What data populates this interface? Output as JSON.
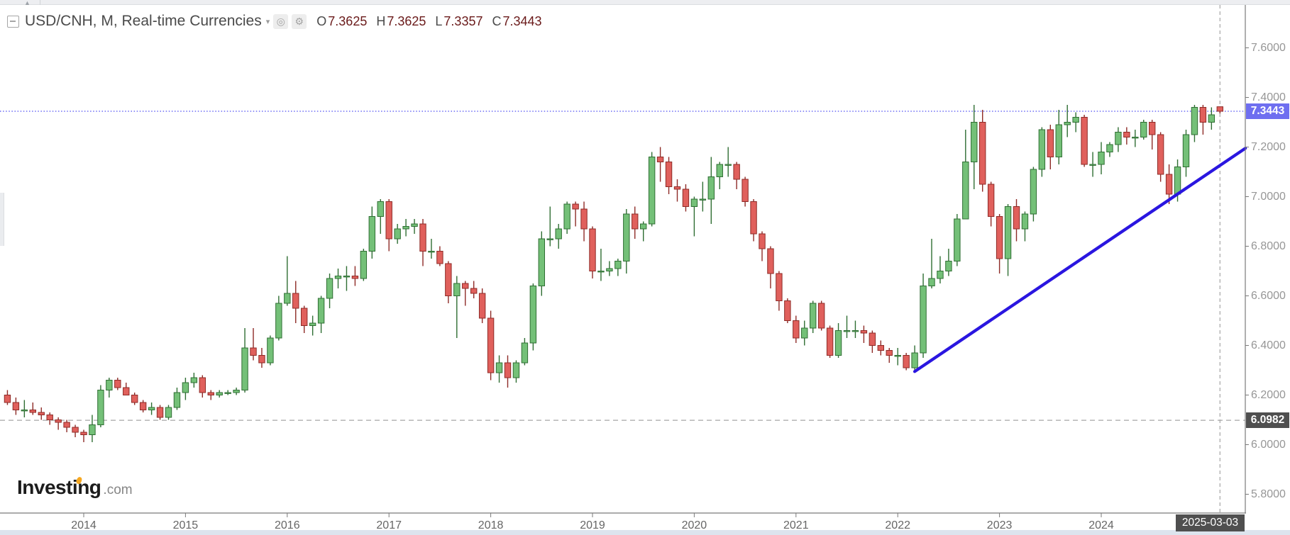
{
  "header": {
    "title": "USD/CNH, M, Real-time Currencies",
    "ohlc": [
      {
        "label": "O",
        "value": "7.3625"
      },
      {
        "label": "H",
        "value": "7.3625"
      },
      {
        "label": "L",
        "value": "7.3357"
      },
      {
        "label": "C",
        "value": "7.3443"
      }
    ],
    "icon_glyphs": {
      "caret": "▾",
      "visibility": "◎",
      "settings": "⚙",
      "scroll_up": "▲"
    },
    "value_color": "#6a1a1a",
    "title_color": "#4a4a4a"
  },
  "logo": {
    "brand": "Investing",
    "suffix": ".com",
    "accent_color": "#f6a71f"
  },
  "price_axis": {
    "ticks": [
      "7.6000",
      "7.4000",
      "7.2000",
      "7.0000",
      "6.8000",
      "6.6000",
      "6.4000",
      "6.2000",
      "6.0000",
      "5.8000"
    ],
    "current_price_label": "7.3443",
    "current_price_bg": "#6e6ef0",
    "reference_price_label": "6.0982",
    "reference_price_bg": "#4f4f4f"
  },
  "time_axis": {
    "years": [
      "2014",
      "2015",
      "2016",
      "2017",
      "2018",
      "2019",
      "2020",
      "2021",
      "2022",
      "2023",
      "2024"
    ],
    "current_date_label": "2025-03-03"
  },
  "chart_data": {
    "type": "candlestick",
    "symbol": "USD/CNH",
    "interval": "M",
    "feed": "Real-time Currencies",
    "title": "USD/CNH Monthly",
    "xlabel": "",
    "ylabel": "",
    "ylim": [
      5.72,
      7.77
    ],
    "grid": false,
    "legend_position": "none",
    "start_month": "2013-04",
    "last_bar_date": "2025-03-03",
    "last_bar_ohlc": {
      "open": 7.3625,
      "high": 7.3625,
      "low": 7.3357,
      "close": 7.3443
    },
    "candles": [
      [
        6.2,
        6.22,
        6.16,
        6.17
      ],
      [
        6.17,
        6.19,
        6.12,
        6.14
      ],
      [
        6.14,
        6.18,
        6.11,
        6.14
      ],
      [
        6.14,
        6.17,
        6.12,
        6.13
      ],
      [
        6.13,
        6.15,
        6.1,
        6.12
      ],
      [
        6.12,
        6.13,
        6.08,
        6.1
      ],
      [
        6.1,
        6.11,
        6.06,
        6.09
      ],
      [
        6.09,
        6.1,
        6.05,
        6.07
      ],
      [
        6.07,
        6.08,
        6.03,
        6.05
      ],
      [
        6.05,
        6.06,
        6.01,
        6.04
      ],
      [
        6.04,
        6.12,
        6.01,
        6.08
      ],
      [
        6.08,
        6.24,
        6.07,
        6.22
      ],
      [
        6.22,
        6.27,
        6.19,
        6.26
      ],
      [
        6.26,
        6.27,
        6.22,
        6.23
      ],
      [
        6.23,
        6.25,
        6.2,
        6.2
      ],
      [
        6.2,
        6.21,
        6.16,
        6.17
      ],
      [
        6.17,
        6.18,
        6.13,
        6.14
      ],
      [
        6.14,
        6.17,
        6.12,
        6.15
      ],
      [
        6.15,
        6.16,
        6.1,
        6.11
      ],
      [
        6.11,
        6.16,
        6.1,
        6.15
      ],
      [
        6.15,
        6.23,
        6.14,
        6.21
      ],
      [
        6.21,
        6.27,
        6.18,
        6.25
      ],
      [
        6.25,
        6.29,
        6.23,
        6.27
      ],
      [
        6.27,
        6.28,
        6.19,
        6.21
      ],
      [
        6.21,
        6.22,
        6.18,
        6.2
      ],
      [
        6.2,
        6.22,
        6.19,
        6.21
      ],
      [
        6.21,
        6.22,
        6.2,
        6.21
      ],
      [
        6.21,
        6.23,
        6.2,
        6.22
      ],
      [
        6.22,
        6.47,
        6.21,
        6.39
      ],
      [
        6.39,
        6.47,
        6.34,
        6.36
      ],
      [
        6.36,
        6.39,
        6.31,
        6.33
      ],
      [
        6.33,
        6.44,
        6.32,
        6.43
      ],
      [
        6.43,
        6.6,
        6.42,
        6.57
      ],
      [
        6.57,
        6.76,
        6.56,
        6.61
      ],
      [
        6.61,
        6.66,
        6.49,
        6.55
      ],
      [
        6.55,
        6.56,
        6.45,
        6.48
      ],
      [
        6.48,
        6.52,
        6.44,
        6.49
      ],
      [
        6.49,
        6.6,
        6.45,
        6.59
      ],
      [
        6.59,
        6.69,
        6.55,
        6.67
      ],
      [
        6.67,
        6.71,
        6.63,
        6.68
      ],
      [
        6.68,
        6.72,
        6.62,
        6.68
      ],
      [
        6.68,
        6.72,
        6.64,
        6.67
      ],
      [
        6.67,
        6.79,
        6.66,
        6.78
      ],
      [
        6.78,
        6.96,
        6.75,
        6.92
      ],
      [
        6.92,
        6.99,
        6.85,
        6.98
      ],
      [
        6.98,
        6.99,
        6.78,
        6.83
      ],
      [
        6.83,
        6.89,
        6.81,
        6.87
      ],
      [
        6.87,
        6.91,
        6.84,
        6.88
      ],
      [
        6.88,
        6.91,
        6.85,
        6.89
      ],
      [
        6.89,
        6.91,
        6.72,
        6.78
      ],
      [
        6.78,
        6.83,
        6.75,
        6.78
      ],
      [
        6.78,
        6.8,
        6.72,
        6.73
      ],
      [
        6.73,
        6.74,
        6.57,
        6.6
      ],
      [
        6.6,
        6.68,
        6.43,
        6.65
      ],
      [
        6.65,
        6.66,
        6.56,
        6.63
      ],
      [
        6.63,
        6.66,
        6.59,
        6.61
      ],
      [
        6.61,
        6.63,
        6.49,
        6.51
      ],
      [
        6.51,
        6.54,
        6.26,
        6.29
      ],
      [
        6.29,
        6.36,
        6.25,
        6.33
      ],
      [
        6.33,
        6.36,
        6.23,
        6.27
      ],
      [
        6.27,
        6.34,
        6.25,
        6.33
      ],
      [
        6.33,
        6.43,
        6.32,
        6.41
      ],
      [
        6.41,
        6.65,
        6.38,
        6.64
      ],
      [
        6.64,
        6.86,
        6.6,
        6.83
      ],
      [
        6.83,
        6.96,
        6.8,
        6.83
      ],
      [
        6.83,
        6.89,
        6.79,
        6.87
      ],
      [
        6.87,
        6.98,
        6.85,
        6.97
      ],
      [
        6.97,
        6.98,
        6.88,
        6.95
      ],
      [
        6.95,
        6.98,
        6.82,
        6.87
      ],
      [
        6.87,
        6.88,
        6.67,
        6.7
      ],
      [
        6.7,
        6.79,
        6.66,
        6.7
      ],
      [
        6.7,
        6.74,
        6.68,
        6.71
      ],
      [
        6.71,
        6.75,
        6.68,
        6.74
      ],
      [
        6.74,
        6.95,
        6.69,
        6.93
      ],
      [
        6.93,
        6.96,
        6.83,
        6.87
      ],
      [
        6.87,
        6.9,
        6.82,
        6.89
      ],
      [
        6.89,
        7.18,
        6.88,
        7.16
      ],
      [
        7.16,
        7.2,
        7.06,
        7.14
      ],
      [
        7.14,
        7.16,
        7.01,
        7.04
      ],
      [
        7.04,
        7.07,
        6.98,
        7.03
      ],
      [
        7.03,
        7.05,
        6.94,
        6.96
      ],
      [
        6.96,
        7.0,
        6.84,
        6.99
      ],
      [
        6.99,
        7.06,
        6.94,
        6.99
      ],
      [
        6.99,
        7.16,
        6.89,
        7.08
      ],
      [
        7.08,
        7.14,
        7.03,
        7.13
      ],
      [
        7.13,
        7.2,
        7.08,
        7.13
      ],
      [
        7.13,
        7.14,
        7.03,
        7.07
      ],
      [
        7.07,
        7.08,
        6.96,
        6.98
      ],
      [
        6.98,
        6.99,
        6.82,
        6.85
      ],
      [
        6.85,
        6.86,
        6.74,
        6.79
      ],
      [
        6.79,
        6.8,
        6.63,
        6.69
      ],
      [
        6.69,
        6.7,
        6.54,
        6.58
      ],
      [
        6.58,
        6.59,
        6.49,
        6.5
      ],
      [
        6.5,
        6.52,
        6.41,
        6.43
      ],
      [
        6.43,
        6.5,
        6.4,
        6.47
      ],
      [
        6.47,
        6.58,
        6.45,
        6.57
      ],
      [
        6.57,
        6.58,
        6.46,
        6.47
      ],
      [
        6.47,
        6.48,
        6.35,
        6.36
      ],
      [
        6.36,
        6.49,
        6.35,
        6.46
      ],
      [
        6.46,
        6.52,
        6.43,
        6.46
      ],
      [
        6.46,
        6.5,
        6.43,
        6.46
      ],
      [
        6.46,
        6.48,
        6.41,
        6.45
      ],
      [
        6.45,
        6.46,
        6.37,
        6.4
      ],
      [
        6.4,
        6.42,
        6.36,
        6.38
      ],
      [
        6.38,
        6.39,
        6.33,
        6.36
      ],
      [
        6.36,
        6.39,
        6.32,
        6.36
      ],
      [
        6.36,
        6.37,
        6.3,
        6.31
      ],
      [
        6.31,
        6.4,
        6.29,
        6.37
      ],
      [
        6.37,
        6.69,
        6.35,
        6.64
      ],
      [
        6.64,
        6.83,
        6.63,
        6.67
      ],
      [
        6.67,
        6.76,
        6.65,
        6.7
      ],
      [
        6.7,
        6.79,
        6.68,
        6.74
      ],
      [
        6.74,
        6.93,
        6.72,
        6.91
      ],
      [
        6.91,
        7.27,
        6.91,
        7.14
      ],
      [
        7.14,
        7.37,
        7.03,
        7.3
      ],
      [
        7.3,
        7.35,
        7.02,
        7.05
      ],
      [
        7.05,
        7.06,
        6.88,
        6.92
      ],
      [
        6.92,
        6.93,
        6.69,
        6.75
      ],
      [
        6.75,
        6.97,
        6.68,
        6.96
      ],
      [
        6.96,
        6.99,
        6.82,
        6.87
      ],
      [
        6.87,
        6.94,
        6.82,
        6.93
      ],
      [
        6.93,
        7.12,
        6.9,
        7.11
      ],
      [
        7.11,
        7.28,
        7.08,
        7.27
      ],
      [
        7.27,
        7.29,
        7.11,
        7.16
      ],
      [
        7.16,
        7.35,
        7.13,
        7.29
      ],
      [
        7.29,
        7.37,
        7.24,
        7.3
      ],
      [
        7.3,
        7.34,
        7.26,
        7.32
      ],
      [
        7.32,
        7.33,
        7.12,
        7.13
      ],
      [
        7.13,
        7.18,
        7.08,
        7.13
      ],
      [
        7.13,
        7.22,
        7.09,
        7.18
      ],
      [
        7.18,
        7.22,
        7.16,
        7.21
      ],
      [
        7.21,
        7.28,
        7.18,
        7.26
      ],
      [
        7.26,
        7.28,
        7.21,
        7.24
      ],
      [
        7.24,
        7.27,
        7.2,
        7.24
      ],
      [
        7.24,
        7.31,
        7.23,
        7.3
      ],
      [
        7.3,
        7.31,
        7.19,
        7.25
      ],
      [
        7.25,
        7.26,
        7.06,
        7.09
      ],
      [
        7.09,
        7.13,
        6.97,
        7.01
      ],
      [
        7.01,
        7.15,
        6.98,
        7.12
      ],
      [
        7.12,
        7.27,
        7.08,
        7.25
      ],
      [
        7.25,
        7.37,
        7.22,
        7.36
      ],
      [
        7.36,
        7.37,
        7.25,
        7.3
      ],
      [
        7.3,
        7.36,
        7.27,
        7.33
      ],
      [
        7.3625,
        7.3625,
        7.3357,
        7.3443
      ]
    ],
    "colors": {
      "up_fill": "#74c078",
      "up_stroke": "#2f6e33",
      "down_fill": "#e0605c",
      "down_stroke": "#8e2b27",
      "axis": "#7a7a7a"
    },
    "hlines": [
      {
        "price": 7.3443,
        "style": "dotted",
        "color": "#4d4df2",
        "label": "7.3443",
        "label_bg": "#6e6ef0"
      },
      {
        "price": 6.0982,
        "style": "dashed",
        "color": "#a6a6a6",
        "label": "6.0982",
        "label_bg": "#4f4f4f"
      }
    ],
    "vline": {
      "date": "2025-03-03",
      "style": "dashed",
      "color": "#a6a6a6"
    },
    "trendline": {
      "from_month": "2022-03",
      "from_price": 6.295,
      "to_month": "2025-06",
      "to_price": 7.195,
      "color": "#2a16e0",
      "width": 4.3
    }
  }
}
